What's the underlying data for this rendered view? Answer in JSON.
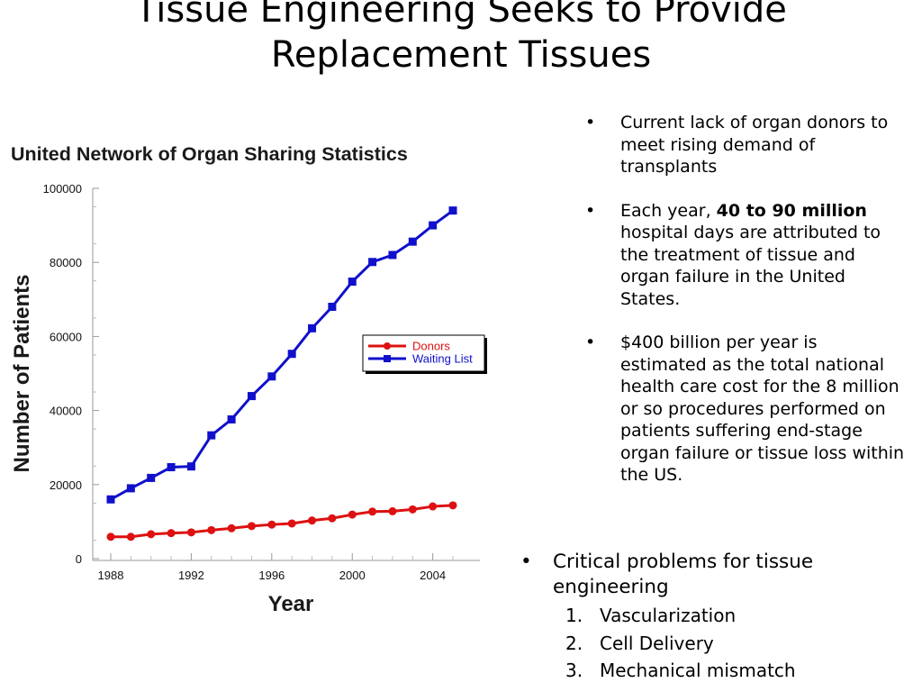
{
  "slide": {
    "title_line1": "Tissue Engineering Seeks to Provide",
    "title_line2": "Replacement Tissues"
  },
  "bullets": [
    {
      "text": "Current lack of organ donors to meet rising demand of transplants"
    },
    {
      "prefix": "Each year, ",
      "bold": "40 to 90 million",
      "suffix": " hospital days are attributed to the treatment of tissue and organ failure in the United States."
    },
    {
      "text": "$400 billion per year is estimated as the total national health care cost for the 8 million or so procedures performed on patients suffering end-stage organ failure or tissue loss within the US."
    }
  ],
  "critical": {
    "lead": "Critical problems for tissue engineering",
    "items": [
      {
        "num": "1.",
        "text": "Vascularization"
      },
      {
        "num": "2.",
        "text": "Cell Delivery"
      },
      {
        "num": "3.",
        "text": "Mechanical mismatch"
      }
    ]
  },
  "chart_data": {
    "type": "line",
    "title": "United Network of Organ Sharing Statistics",
    "xlabel": "Year",
    "ylabel": "Number of Patients",
    "xlim": [
      1988,
      2005
    ],
    "ylim": [
      0,
      100000
    ],
    "x_ticks": [
      1988,
      1992,
      1996,
      2000,
      2004
    ],
    "y_ticks": [
      0,
      20000,
      40000,
      60000,
      80000,
      100000
    ],
    "grid": false,
    "legend": "center-right",
    "x": [
      1988,
      1989,
      1990,
      1991,
      1992,
      1993,
      1994,
      1995,
      1996,
      1997,
      1998,
      1999,
      2000,
      2001,
      2002,
      2003,
      2004,
      2005
    ],
    "series": [
      {
        "name": "Donors",
        "color": "#dd1111",
        "marker": "circle",
        "values": [
          5900,
          5900,
          6600,
          6900,
          7100,
          7700,
          8200,
          8800,
          9200,
          9500,
          10300,
          10900,
          11900,
          12700,
          12800,
          13300,
          14100,
          14400
        ]
      },
      {
        "name": "Waiting List",
        "color": "#1010cc",
        "marker": "square",
        "values": [
          16000,
          19000,
          21800,
          24700,
          24900,
          33300,
          37600,
          43900,
          49200,
          55300,
          62200,
          68000,
          74800,
          80100,
          82000,
          85600,
          90000,
          94000
        ]
      }
    ]
  }
}
